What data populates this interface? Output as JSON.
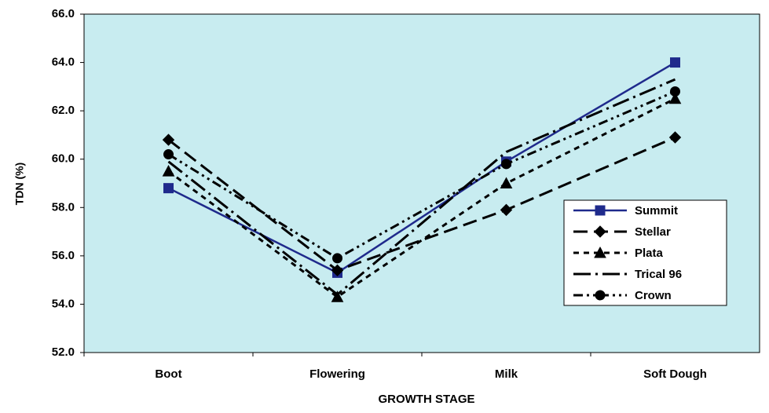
{
  "chart_data": {
    "type": "line",
    "x_label": "GROWTH STAGE",
    "y_label": "TDN (%)",
    "categories": [
      "Boot",
      "Flowering",
      "Milk",
      "Soft Dough"
    ],
    "series": [
      {
        "name": "Summit",
        "color": "#1f2a8c",
        "marker": "square",
        "dash": "solid",
        "values": [
          58.8,
          55.3,
          59.9,
          64.0
        ]
      },
      {
        "name": "Stellar",
        "color": "#000000",
        "marker": "diamond",
        "dash": "long",
        "values": [
          60.8,
          55.4,
          57.9,
          60.9
        ]
      },
      {
        "name": "Plata",
        "color": "#000000",
        "marker": "triangle",
        "dash": "short",
        "values": [
          59.5,
          54.3,
          59.0,
          62.5
        ]
      },
      {
        "name": "Trical 96",
        "color": "#000000",
        "marker": "none",
        "dash": "longdot",
        "values": [
          59.9,
          54.4,
          60.3,
          63.3
        ]
      },
      {
        "name": "Crown",
        "color": "#000000",
        "marker": "circle",
        "dash": "dashdot",
        "values": [
          60.2,
          55.9,
          59.8,
          62.8
        ]
      }
    ],
    "ylim": [
      52,
      66
    ],
    "yticks": [
      {
        "value": 52,
        "label": "52.0"
      },
      {
        "value": 54,
        "label": "54.0"
      },
      {
        "value": 56,
        "label": "56.0"
      },
      {
        "value": 58,
        "label": "58.0"
      },
      {
        "value": 60,
        "label": "60.0"
      },
      {
        "value": 62,
        "label": "62.0"
      },
      {
        "value": 64,
        "label": "64.0"
      },
      {
        "value": 66,
        "label": "66.0"
      }
    ],
    "grid": false,
    "legend": "right",
    "plot_background": "#c8ecf0"
  }
}
